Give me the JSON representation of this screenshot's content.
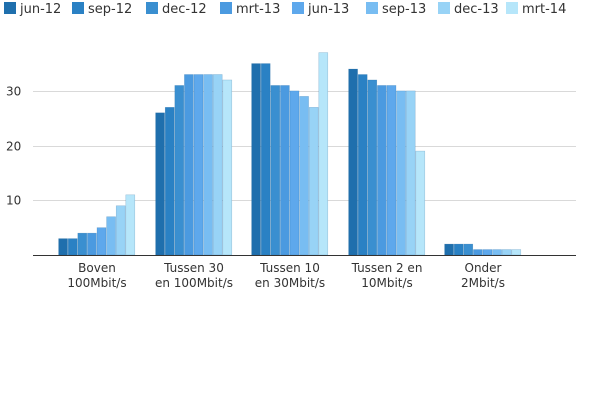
{
  "chart_data": {
    "type": "bar",
    "categories": [
      [
        "Boven",
        "100Mbit/s"
      ],
      [
        "Tussen 30",
        "en 100Mbit/s"
      ],
      [
        "Tussen 10",
        "en 30Mbit/s"
      ],
      [
        "Tussen 2 en",
        "10Mbit/s"
      ],
      [
        "Onder",
        "2Mbit/s"
      ]
    ],
    "series": [
      {
        "name": "jun-12",
        "color": "#1f6fad",
        "values": [
          3,
          26,
          35,
          34,
          2
        ]
      },
      {
        "name": "sep-12",
        "color": "#2a81c4",
        "values": [
          3,
          27,
          35,
          33,
          2
        ]
      },
      {
        "name": "dec-12",
        "color": "#3a8fd0",
        "values": [
          4,
          31,
          31,
          32,
          2
        ]
      },
      {
        "name": "mrt-13",
        "color": "#4b9ae0",
        "values": [
          4,
          33,
          31,
          31,
          1
        ]
      },
      {
        "name": "jun-13",
        "color": "#5ea8ec",
        "values": [
          5,
          33,
          30,
          31,
          1
        ]
      },
      {
        "name": "sep-13",
        "color": "#78bdf2",
        "values": [
          7,
          33,
          29,
          30,
          1
        ]
      },
      {
        "name": "dec-13",
        "color": "#98d3f6",
        "values": [
          9,
          33,
          27,
          30,
          1
        ]
      },
      {
        "name": "mrt-14",
        "color": "#b6e6fa",
        "values": [
          11,
          32,
          37,
          19,
          1
        ]
      }
    ],
    "yticks": [
      10,
      20,
      30
    ],
    "ylim": [
      0,
      40
    ],
    "grid": true,
    "legend_position": "top-left",
    "title": "",
    "xlabel": "",
    "ylabel": ""
  }
}
